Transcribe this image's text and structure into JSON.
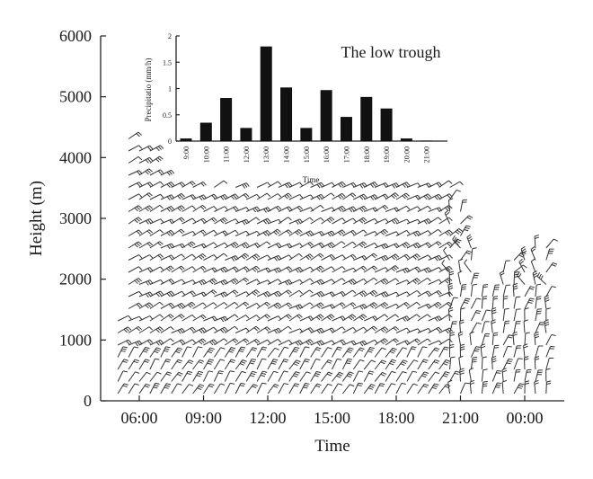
{
  "chart_data": [
    {
      "type": "scatter",
      "subtype": "wind-barb-time-height",
      "xlabel": "Time",
      "ylabel": "Height (m)",
      "x_ticks": [
        "06:00",
        "09:00",
        "12:00",
        "15:00",
        "18:00",
        "21:00",
        "00:00"
      ],
      "y_ticks": [
        0,
        1000,
        2000,
        3000,
        4000,
        5000,
        6000
      ],
      "ylim": [
        0,
        6000
      ],
      "barb_times": [
        "05:00",
        "05:30",
        "06:00",
        "06:30",
        "07:00",
        "07:30",
        "08:00",
        "08:30",
        "09:00",
        "09:30",
        "10:00",
        "10:30",
        "11:00",
        "11:30",
        "12:00",
        "12:30",
        "13:00",
        "13:30",
        "14:00",
        "14:30",
        "15:00",
        "15:30",
        "16:00",
        "16:30",
        "17:00",
        "17:30",
        "18:00",
        "18:30",
        "19:00",
        "19:30",
        "20:00",
        "20:30",
        "21:00",
        "21:30",
        "22:00",
        "22:30",
        "23:00",
        "23:30",
        "00:00",
        "00:30",
        "01:00"
      ],
      "barb_top_height_m": [
        1400,
        4500,
        4200,
        4300,
        3900,
        3600,
        3600,
        3600,
        3500,
        3600,
        3500,
        3600,
        3500,
        3600,
        3600,
        3600,
        3600,
        3600,
        3600,
        3600,
        3600,
        3600,
        3600,
        3600,
        3600,
        3600,
        3600,
        3600,
        3600,
        3600,
        3600,
        3600,
        3300,
        2600,
        1800,
        1800,
        2300,
        2500,
        2500,
        2700,
        2700
      ]
    },
    {
      "type": "bar",
      "title": "The low trough",
      "xlabel": "Time",
      "ylabel": "Precipitatio (mm/h)",
      "categories": [
        "9:00",
        "10:00",
        "11:00",
        "12:00",
        "13:00",
        "14:00",
        "15:00",
        "16:00",
        "17:00",
        "18:00",
        "19:00",
        "20:00",
        "21:00"
      ],
      "values": [
        0.05,
        0.35,
        0.82,
        0.25,
        1.8,
        1.02,
        0.25,
        0.97,
        0.46,
        0.84,
        0.62,
        0.05,
        0.01
      ],
      "ylim": [
        0,
        2
      ],
      "y_ticks": [
        0,
        0.5,
        1,
        1.5,
        2
      ]
    }
  ]
}
